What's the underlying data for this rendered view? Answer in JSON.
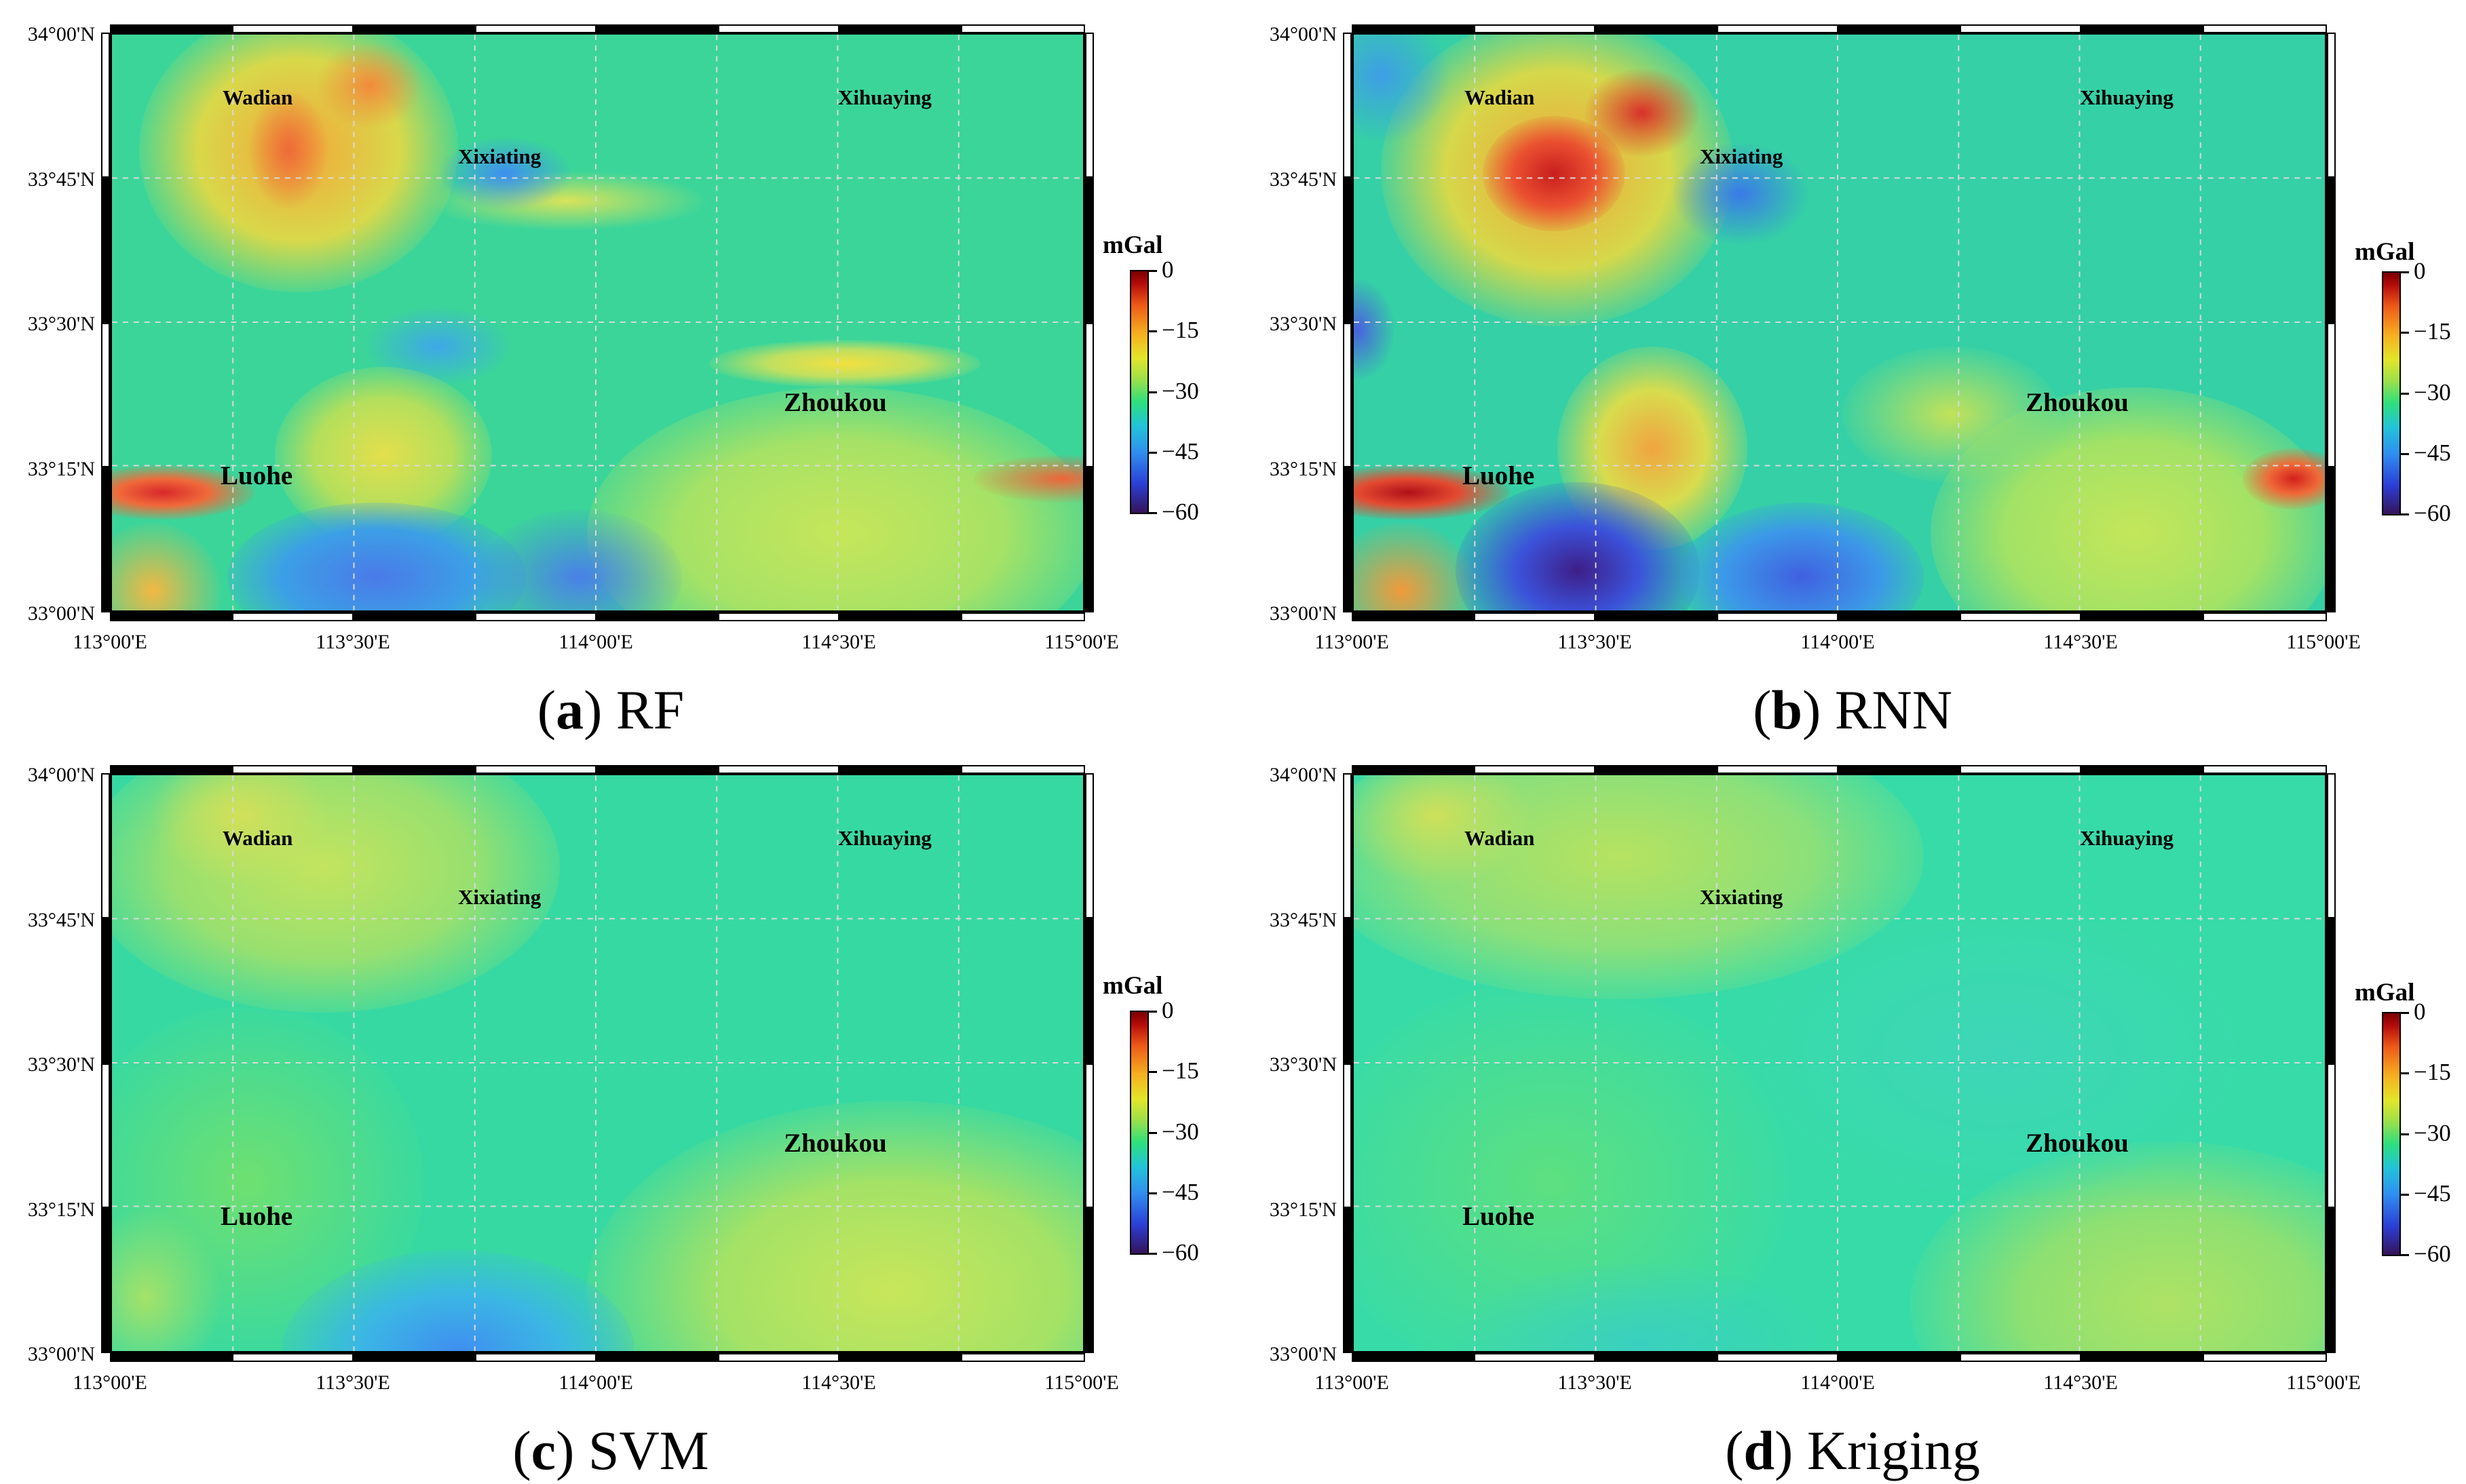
{
  "panels": [
    {
      "letter": "a",
      "method": "RF"
    },
    {
      "letter": "b",
      "method": "RNN"
    },
    {
      "letter": "c",
      "method": "SVM"
    },
    {
      "letter": "d",
      "method": "Kriging"
    }
  ],
  "axes": {
    "y_ticks": [
      "34°00'N",
      "33°45'N",
      "33°30'N",
      "33°15'N",
      "33°00'N"
    ],
    "x_ticks": [
      "113°00'E",
      "113°30'E",
      "114°00'E",
      "114°30'E",
      "115°00'E"
    ]
  },
  "places": {
    "wadian": "Wadian",
    "xixiating": "Xixiating",
    "xihuaying": "Xihuaying",
    "zhoukou": "Zhoukou",
    "luohe": "Luohe"
  },
  "colorbar": {
    "unit": "mGal",
    "ticks": [
      "0",
      "−15",
      "−30",
      "−45",
      "−60"
    ],
    "min": -60,
    "max": 0
  },
  "colors": {
    "background_rf": "#3ad596",
    "background_smooth": "#37dba0"
  }
}
